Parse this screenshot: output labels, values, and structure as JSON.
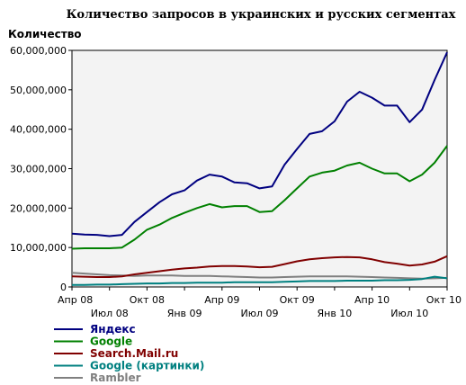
{
  "chart_data": {
    "type": "line",
    "title": "Количество запросов в украинских и русских сегментах",
    "xlabel": "",
    "ylabel": "Количество",
    "ylim": [
      0,
      60000000
    ],
    "y_ticks": [
      0,
      10000000,
      20000000,
      30000000,
      40000000,
      50000000,
      60000000
    ],
    "y_tick_labels": [
      "0",
      "10,000,000",
      "20,000,000",
      "30,000,000",
      "40,000,000",
      "50,000,000",
      "60,000,000"
    ],
    "grid": false,
    "legend_position": "bottom-left",
    "x": [
      "2008-04",
      "2008-05",
      "2008-06",
      "2008-07",
      "2008-08",
      "2008-09",
      "2008-10",
      "2008-11",
      "2008-12",
      "2009-01",
      "2009-02",
      "2009-03",
      "2009-04",
      "2009-05",
      "2009-06",
      "2009-07",
      "2009-08",
      "2009-09",
      "2009-10",
      "2009-11",
      "2009-12",
      "2010-01",
      "2010-02",
      "2010-03",
      "2010-04",
      "2010-05",
      "2010-06",
      "2010-07",
      "2010-08",
      "2010-09",
      "2010-10"
    ],
    "x_tick_labels_row1": [
      {
        "x": "2008-04",
        "label": "Апр 08"
      },
      {
        "x": "2008-10",
        "label": "Окт 08"
      },
      {
        "x": "2009-04",
        "label": "Апр 09"
      },
      {
        "x": "2009-10",
        "label": "Окт 09"
      },
      {
        "x": "2010-04",
        "label": "Апр 10"
      },
      {
        "x": "2010-10",
        "label": "Окт 10"
      }
    ],
    "x_tick_labels_row2": [
      {
        "x": "2008-07",
        "label": "Июл 08"
      },
      {
        "x": "2009-01",
        "label": "Янв 09"
      },
      {
        "x": "2009-07",
        "label": "Июл 09"
      },
      {
        "x": "2010-01",
        "label": "Янв 10"
      },
      {
        "x": "2010-07",
        "label": "Июл 10"
      }
    ],
    "series": [
      {
        "name": "Яндекс",
        "color": "#000080",
        "values": [
          13500000,
          13300000,
          13200000,
          12900000,
          13200000,
          16500000,
          19000000,
          21500000,
          23500000,
          24500000,
          27000000,
          28500000,
          28000000,
          26500000,
          26300000,
          25000000,
          25500000,
          31000000,
          35000000,
          38800000,
          39500000,
          42000000,
          47000000,
          49500000,
          48000000,
          46000000,
          46000000,
          41800000,
          45000000,
          52500000,
          59500000
        ]
      },
      {
        "name": "Google",
        "color": "#008000",
        "values": [
          9700000,
          9800000,
          9800000,
          9800000,
          10000000,
          12000000,
          14500000,
          15800000,
          17500000,
          18800000,
          20000000,
          21000000,
          20200000,
          20500000,
          20500000,
          19000000,
          19200000,
          22000000,
          25000000,
          28000000,
          29000000,
          29500000,
          30800000,
          31500000,
          30000000,
          28800000,
          28800000,
          26800000,
          28500000,
          31500000,
          35800000
        ]
      },
      {
        "name": "Search.Mail.ru",
        "color": "#800000",
        "values": [
          2700000,
          2600000,
          2500000,
          2500000,
          2700000,
          3200000,
          3600000,
          4000000,
          4400000,
          4700000,
          4900000,
          5200000,
          5300000,
          5300000,
          5200000,
          5000000,
          5100000,
          5800000,
          6500000,
          7000000,
          7300000,
          7500000,
          7600000,
          7500000,
          7000000,
          6300000,
          5900000,
          5400000,
          5700000,
          6400000,
          7800000
        ]
      },
      {
        "name": "Google (картинки)",
        "color": "#008080",
        "values": [
          500000,
          500000,
          600000,
          600000,
          700000,
          800000,
          900000,
          900000,
          1000000,
          1000000,
          1100000,
          1100000,
          1100000,
          1200000,
          1200000,
          1200000,
          1200000,
          1300000,
          1400000,
          1500000,
          1500000,
          1500000,
          1600000,
          1600000,
          1600000,
          1700000,
          1700000,
          1800000,
          2000000,
          2600000,
          2200000
        ]
      },
      {
        "name": "Rambler",
        "color": "#808080",
        "values": [
          3600000,
          3400000,
          3200000,
          3000000,
          2900000,
          2800000,
          2900000,
          2900000,
          2900000,
          2800000,
          2800000,
          2800000,
          2700000,
          2600000,
          2500000,
          2400000,
          2400000,
          2500000,
          2600000,
          2700000,
          2700000,
          2700000,
          2700000,
          2600000,
          2500000,
          2400000,
          2300000,
          2200000,
          2100000,
          2200000,
          2300000
        ]
      }
    ]
  }
}
